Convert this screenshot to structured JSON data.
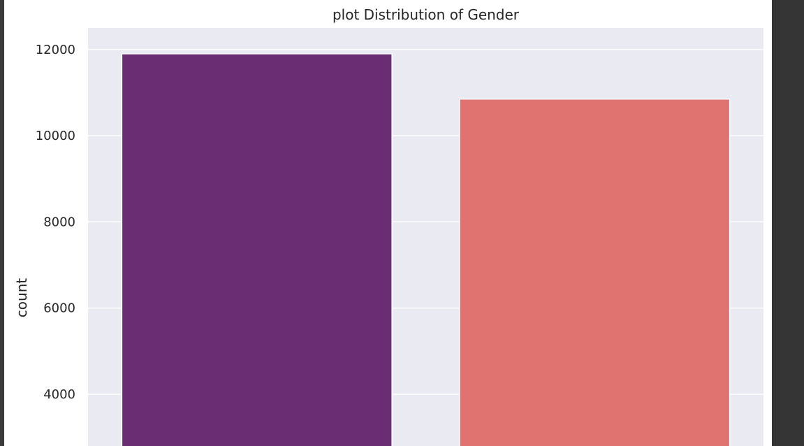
{
  "chart_data": {
    "type": "bar",
    "title": "plot Distribution of Gender",
    "xlabel": "",
    "ylabel": "count",
    "ylim": [
      2800,
      12500
    ],
    "yticks": [
      4000,
      6000,
      8000,
      10000,
      12000
    ],
    "grid": true,
    "categories": [
      "",
      ""
    ],
    "values": [
      11900,
      10850
    ],
    "colors": [
      "#6a2c73",
      "#e07370"
    ]
  },
  "style": {
    "plot_background": "#eaeaf2",
    "grid_color": "#ffffff",
    "text_color": "#262626"
  }
}
